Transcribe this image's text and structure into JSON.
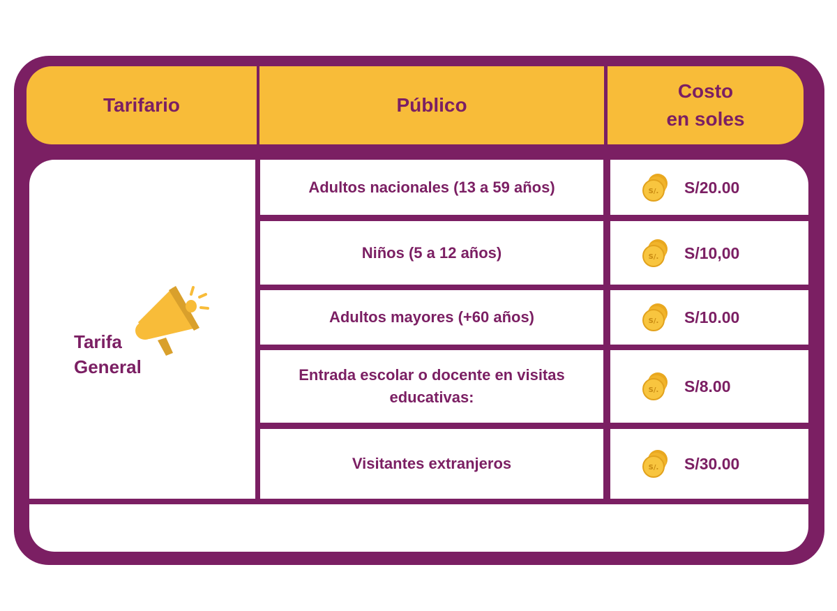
{
  "header": {
    "tarifario": "Tarifario",
    "publico": "Público",
    "costo_line1": "Costo",
    "costo_line2": "en soles"
  },
  "category": {
    "line1": "Tarifa",
    "line2": "General",
    "icon": "megaphone-icon"
  },
  "rows": [
    {
      "publico": "Adultos nacionales (13 a 59 años)",
      "costo": "S/20.00",
      "icon": "coin-icon"
    },
    {
      "publico": "Niños (5 a 12 años)",
      "costo": "S/10,00",
      "icon": "coin-icon"
    },
    {
      "publico": "Adultos mayores (+60 años)",
      "costo": "S/10.00",
      "icon": "coin-icon"
    },
    {
      "publico_line1": "Entrada escolar o docente en visitas",
      "publico_line2": "educativas:",
      "costo": "S/8.00",
      "icon": "coin-icon"
    },
    {
      "publico": "Visitantes extranjeros",
      "costo": "S/30.00",
      "icon": "coin-icon"
    }
  ],
  "coin_label": "S/.",
  "colors": {
    "purple": "#7b1f63",
    "yellow": "#f8bc39",
    "white": "#ffffff"
  }
}
